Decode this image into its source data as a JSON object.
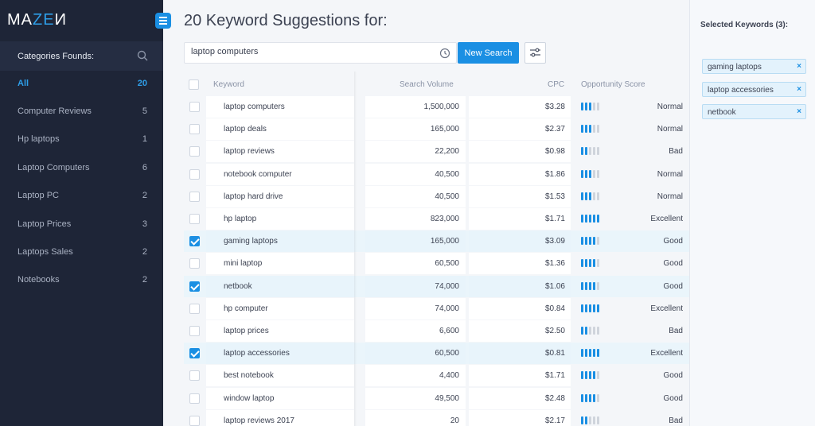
{
  "brand": {
    "logo_pre": "MA",
    "logo_accent": "ZE",
    "logo_post": "И"
  },
  "sidebar": {
    "header_title": "Categories Founds:",
    "categories": [
      {
        "label": "All",
        "count": "20",
        "active": true
      },
      {
        "label": "Computer Reviews",
        "count": "5"
      },
      {
        "label": "Hp laptops",
        "count": "1"
      },
      {
        "label": "Laptop Computers",
        "count": "6"
      },
      {
        "label": "Laptop PC",
        "count": "2"
      },
      {
        "label": "Laptop Prices",
        "count": "3"
      },
      {
        "label": "Laptops Sales",
        "count": "2"
      },
      {
        "label": "Notebooks",
        "count": "2"
      }
    ]
  },
  "main": {
    "title": "20 Keyword Suggestions for:",
    "search_value": "laptop computers",
    "new_search_label": "New Search",
    "columns": {
      "keyword": "Keyword",
      "volume": "Search Volume",
      "cpc": "CPC",
      "score": "Opportunity Score"
    },
    "rows": [
      {
        "keyword": "laptop computers",
        "volume": "1,500,000",
        "cpc": "$3.28",
        "level": 3,
        "rating": "Normal",
        "checked": false
      },
      {
        "keyword": "laptop deals",
        "volume": "165,000",
        "cpc": "$2.37",
        "level": 3,
        "rating": "Normal",
        "checked": false
      },
      {
        "keyword": "laptop reviews",
        "volume": "22,200",
        "cpc": "$0.98",
        "level": 2,
        "rating": "Bad",
        "checked": false
      },
      {
        "keyword": "notebook computer",
        "volume": "40,500",
        "cpc": "$1.86",
        "level": 3,
        "rating": "Normal",
        "checked": false
      },
      {
        "keyword": "laptop hard drive",
        "volume": "40,500",
        "cpc": "$1.53",
        "level": 3,
        "rating": "Normal",
        "checked": false
      },
      {
        "keyword": "hp laptop",
        "volume": "823,000",
        "cpc": "$1.71",
        "level": 5,
        "rating": "Excellent",
        "checked": false
      },
      {
        "keyword": "gaming laptops",
        "volume": "165,000",
        "cpc": "$3.09",
        "level": 4,
        "rating": "Good",
        "checked": true
      },
      {
        "keyword": "mini laptop",
        "volume": "60,500",
        "cpc": "$1.36",
        "level": 4,
        "rating": "Good",
        "checked": false
      },
      {
        "keyword": "netbook",
        "volume": "74,000",
        "cpc": "$1.06",
        "level": 4,
        "rating": "Good",
        "checked": true
      },
      {
        "keyword": "hp computer",
        "volume": "74,000",
        "cpc": "$0.84",
        "level": 5,
        "rating": "Excellent",
        "checked": false
      },
      {
        "keyword": "laptop prices",
        "volume": "6,600",
        "cpc": "$2.50",
        "level": 2,
        "rating": "Bad",
        "checked": false
      },
      {
        "keyword": "laptop accessories",
        "volume": "60,500",
        "cpc": "$0.81",
        "level": 5,
        "rating": "Excellent",
        "checked": true
      },
      {
        "keyword": "best notebook",
        "volume": "4,400",
        "cpc": "$1.71",
        "level": 4,
        "rating": "Good",
        "checked": false
      },
      {
        "keyword": "window laptop",
        "volume": "49,500",
        "cpc": "$2.48",
        "level": 4,
        "rating": "Good",
        "checked": false
      },
      {
        "keyword": "laptop reviews 2017",
        "volume": "20",
        "cpc": "$2.17",
        "level": 2,
        "rating": "Bad",
        "checked": false
      }
    ]
  },
  "selected_panel": {
    "title": "Selected Keywords (3):",
    "chips": [
      "gaming laptops",
      "laptop accessories",
      "netbook"
    ],
    "remove_glyph": "×"
  },
  "colors": {
    "accent": "#1a8fe3",
    "sidebar_bg": "#1e2537"
  }
}
